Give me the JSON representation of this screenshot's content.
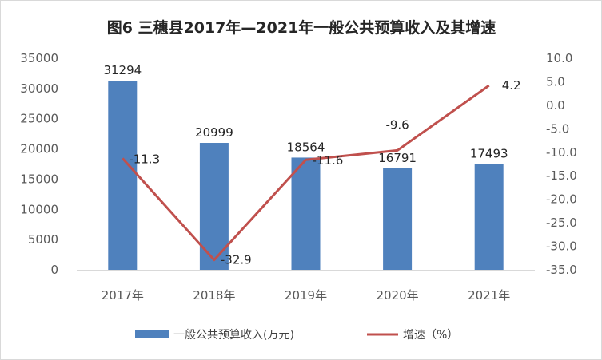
{
  "chart_data": {
    "type": "bar",
    "title": "图6  三穗县2017年—2021年一般公共预算收入及其增速",
    "categories": [
      "2017年",
      "2018年",
      "2019年",
      "2020年",
      "2021年"
    ],
    "series": [
      {
        "name": "一般公共预算收入(万元)",
        "type": "bar",
        "axis": "left",
        "color": "#4F81BD",
        "values": [
          31294,
          20999,
          18564,
          16791,
          17493
        ],
        "labels": [
          "31294",
          "20999",
          "18564",
          "16791",
          "17493"
        ]
      },
      {
        "name": "增速（%）",
        "type": "line",
        "axis": "right",
        "color": "#C0504D",
        "values": [
          -11.3,
          -32.9,
          -11.6,
          -9.6,
          4.2
        ],
        "labels": [
          "-11.3",
          "-32.9",
          "-11.6",
          "-9.6",
          "4.2"
        ]
      }
    ],
    "y_left": {
      "range": [
        0,
        35000
      ],
      "ticks": [
        "0",
        "5000",
        "10000",
        "15000",
        "20000",
        "25000",
        "30000",
        "35000"
      ]
    },
    "y_right": {
      "range": [
        -35,
        10
      ],
      "ticks": [
        "10.0",
        "5.0",
        "0.0",
        "-5.0",
        "-10.0",
        "-15.0",
        "-20.0",
        "-25.0",
        "-30.0",
        "-35.0"
      ]
    },
    "grid": false,
    "legend_position": "bottom"
  }
}
